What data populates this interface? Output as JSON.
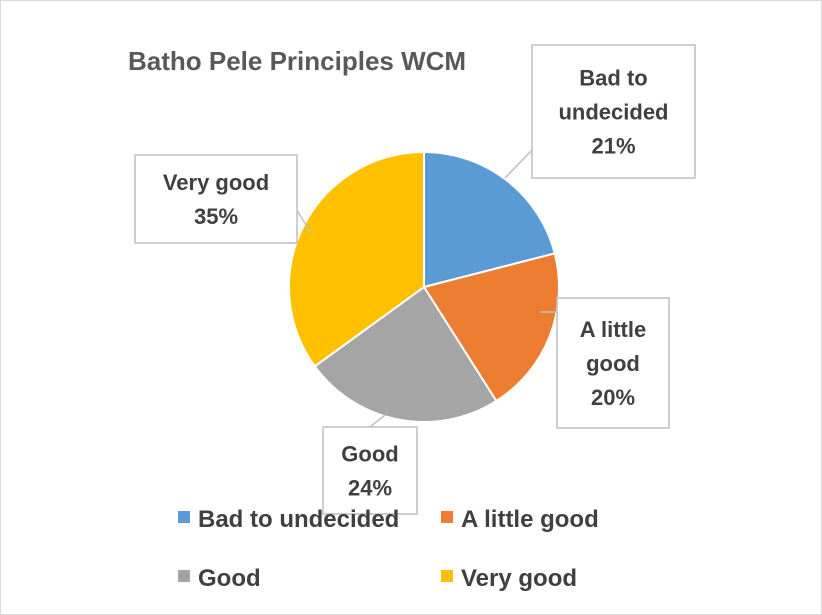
{
  "chart_data": {
    "type": "pie",
    "title": "Batho Pele Principles WCM",
    "categories": [
      "Bad to undecided",
      "A little good",
      "Good",
      "Very good"
    ],
    "values": [
      21,
      20,
      24,
      35
    ],
    "value_labels": [
      "21%",
      "20%",
      "24%",
      "35%"
    ],
    "colors": [
      "#5b9bd5",
      "#ed7d31",
      "#a5a5a5",
      "#ffc000"
    ],
    "data_labels": [
      {
        "lines": [
          "Bad to",
          "undecided",
          "21%"
        ]
      },
      {
        "lines": [
          "A little",
          "good",
          "20%"
        ]
      },
      {
        "lines": [
          "Good",
          "24%"
        ]
      },
      {
        "lines": [
          "Very good",
          "35%"
        ]
      }
    ],
    "legend": {
      "position": "bottom",
      "entries": [
        "Bad to undecided",
        "A little good",
        "Good",
        "Very good"
      ]
    }
  }
}
